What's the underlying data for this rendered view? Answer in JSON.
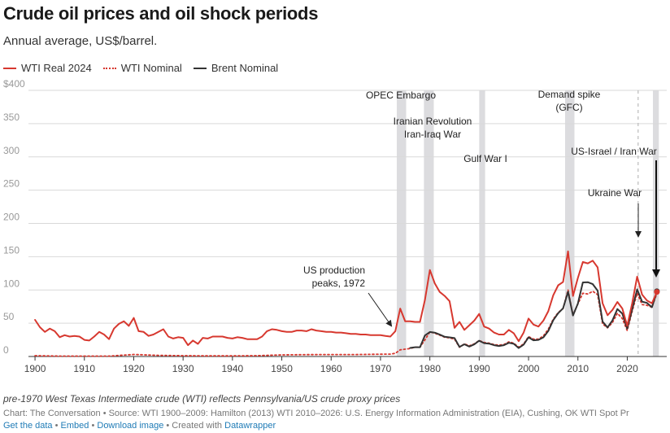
{
  "header": {
    "title": "Crude oil prices and oil shock periods",
    "subtitle": "Annual average, US$/barrel."
  },
  "legend": [
    {
      "label": "WTI Real 2024",
      "color": "#d7382f",
      "style": "solid"
    },
    {
      "label": "WTI Nominal",
      "color": "#d7382f",
      "style": "dotted"
    },
    {
      "label": "Brent Nominal",
      "color": "#333333",
      "style": "solid"
    }
  ],
  "chart_data": {
    "type": "line",
    "title": "Crude oil prices and oil shock periods",
    "ylabel": "US$/barrel",
    "xlim": [
      1899,
      2028
    ],
    "ylim": [
      0,
      400
    ],
    "yticks": [
      0,
      50,
      100,
      150,
      200,
      250,
      300,
      350,
      400
    ],
    "ytick_labels": [
      "0",
      "50",
      "100",
      "150",
      "200",
      "250",
      "300",
      "350",
      "$400"
    ],
    "xticks": [
      1900,
      1910,
      1920,
      1930,
      1940,
      1950,
      1960,
      1970,
      1980,
      1990,
      2000,
      2010,
      2020
    ],
    "xtick_labels": [
      "1900",
      "1910",
      "1920",
      "1930",
      "1940",
      "1950",
      "1960",
      "1970",
      "1980",
      "1990",
      "2000",
      "2010",
      "2020"
    ],
    "grid": true,
    "shaded_periods": [
      {
        "start": 1973.3,
        "end": 1975.2
      },
      {
        "start": 1978.8,
        "end": 1980.8
      },
      {
        "start": 1990.0,
        "end": 1991.2
      },
      {
        "start": 2007.4,
        "end": 2009.3
      },
      {
        "start": 2025.2,
        "end": 2026.4
      }
    ],
    "vlines": [
      {
        "x": 2022.2,
        "style": "dashed"
      }
    ],
    "annotations": [
      {
        "id": "opec",
        "lines": [
          "OPEC Embargo"
        ]
      },
      {
        "id": "iran",
        "lines": [
          "Iranian Revolution",
          "Iran-Iraq War"
        ]
      },
      {
        "id": "gulf",
        "lines": [
          "Gulf War I"
        ]
      },
      {
        "id": "gfc",
        "lines": [
          "Demand spike",
          "(GFC)"
        ]
      },
      {
        "id": "israel",
        "lines": [
          "US-Israel / Iran War"
        ]
      },
      {
        "id": "ukraine",
        "lines": [
          "Ukraine War"
        ]
      },
      {
        "id": "uspeak",
        "lines": [
          "US production",
          "peaks, 1972"
        ]
      }
    ],
    "series": [
      {
        "name": "WTI Real 2024",
        "color": "#d7382f",
        "style": "solid",
        "end_marker": true,
        "x": [
          1900,
          1901,
          1902,
          1903,
          1904,
          1905,
          1906,
          1907,
          1908,
          1909,
          1910,
          1911,
          1912,
          1913,
          1914,
          1915,
          1916,
          1917,
          1918,
          1919,
          1920,
          1921,
          1922,
          1923,
          1924,
          1925,
          1926,
          1927,
          1928,
          1929,
          1930,
          1931,
          1932,
          1933,
          1934,
          1935,
          1936,
          1937,
          1938,
          1939,
          1940,
          1941,
          1942,
          1943,
          1944,
          1945,
          1946,
          1947,
          1948,
          1949,
          1950,
          1951,
          1952,
          1953,
          1954,
          1955,
          1956,
          1957,
          1958,
          1959,
          1960,
          1961,
          1962,
          1963,
          1964,
          1965,
          1966,
          1967,
          1968,
          1969,
          1970,
          1971,
          1972,
          1973,
          1974,
          1975,
          1976,
          1977,
          1978,
          1979,
          1980,
          1981,
          1982,
          1983,
          1984,
          1985,
          1986,
          1987,
          1988,
          1989,
          1990,
          1991,
          1992,
          1993,
          1994,
          1995,
          1996,
          1997,
          1998,
          1999,
          2000,
          2001,
          2002,
          2003,
          2004,
          2005,
          2006,
          2007,
          2008,
          2009,
          2010,
          2011,
          2012,
          2013,
          2014,
          2015,
          2016,
          2017,
          2018,
          2019,
          2020,
          2021,
          2022,
          2023,
          2024,
          2025,
          2026
        ],
        "values": [
          55,
          44,
          37,
          42,
          38,
          29,
          32,
          30,
          31,
          30,
          25,
          24,
          30,
          37,
          33,
          26,
          42,
          49,
          53,
          46,
          58,
          38,
          37,
          31,
          33,
          37,
          41,
          30,
          27,
          29,
          28,
          17,
          24,
          19,
          28,
          27,
          30,
          30,
          30,
          28,
          27,
          29,
          28,
          26,
          26,
          26,
          30,
          38,
          41,
          40,
          38,
          37,
          37,
          39,
          39,
          38,
          41,
          39,
          38,
          37,
          37,
          36,
          36,
          35,
          34,
          34,
          33,
          33,
          32,
          32,
          32,
          31,
          30,
          38,
          72,
          53,
          53,
          52,
          52,
          85,
          130,
          110,
          97,
          91,
          83,
          43,
          52,
          40,
          47,
          54,
          64,
          45,
          42,
          36,
          33,
          33,
          40,
          35,
          23,
          36,
          57,
          48,
          45,
          54,
          68,
          92,
          107,
          112,
          158,
          91,
          118,
          142,
          140,
          144,
          134,
          80,
          62,
          70,
          82,
          72,
          46,
          80,
          120,
          93,
          84,
          80,
          97
        ]
      },
      {
        "name": "WTI Nominal",
        "color": "#d7382f",
        "style": "dotted",
        "x": [
          1900,
          1905,
          1910,
          1915,
          1920,
          1925,
          1930,
          1935,
          1940,
          1945,
          1950,
          1955,
          1960,
          1965,
          1970,
          1972,
          1973,
          1974,
          1975,
          1976,
          1977,
          1978,
          1979,
          1980,
          1981,
          1982,
          1983,
          1984,
          1985,
          1986,
          1987,
          1988,
          1989,
          1990,
          1991,
          1992,
          1993,
          1994,
          1995,
          1996,
          1997,
          1998,
          1999,
          2000,
          2001,
          2002,
          2003,
          2004,
          2005,
          2006,
          2007,
          2008,
          2009,
          2010,
          2011,
          2012,
          2013,
          2014,
          2015,
          2016,
          2017,
          2018,
          2019,
          2020,
          2021,
          2022,
          2023,
          2024,
          2025,
          2026
        ],
        "values": [
          1.2,
          0.6,
          0.6,
          0.6,
          3.1,
          1.7,
          1.2,
          1.0,
          1.0,
          1.2,
          2.5,
          2.8,
          2.9,
          2.9,
          3.4,
          3.6,
          4.8,
          10,
          11,
          12,
          14,
          14,
          25,
          37,
          35,
          32,
          29,
          28,
          26,
          14,
          19,
          16,
          19,
          24,
          21,
          20,
          18,
          17,
          18,
          22,
          20,
          14,
          19,
          30,
          26,
          26,
          31,
          41,
          56,
          66,
          72,
          100,
          62,
          79,
          95,
          94,
          98,
          93,
          49,
          43,
          51,
          65,
          57,
          39,
          68,
          95,
          78,
          77,
          74,
          95
        ]
      },
      {
        "name": "Brent Nominal",
        "color": "#333333",
        "style": "solid",
        "end_marker": true,
        "x": [
          1976,
          1977,
          1978,
          1979,
          1980,
          1981,
          1982,
          1983,
          1984,
          1985,
          1986,
          1987,
          1988,
          1989,
          1990,
          1991,
          1992,
          1993,
          1994,
          1995,
          1996,
          1997,
          1998,
          1999,
          2000,
          2001,
          2002,
          2003,
          2004,
          2005,
          2006,
          2007,
          2008,
          2009,
          2010,
          2011,
          2012,
          2013,
          2014,
          2015,
          2016,
          2017,
          2018,
          2019,
          2020,
          2021,
          2022,
          2023,
          2024,
          2025,
          2026
        ],
        "values": [
          12.8,
          13.9,
          14.0,
          31.6,
          36.8,
          35.9,
          32.9,
          29.6,
          28.8,
          27.6,
          14.4,
          18.4,
          14.9,
          18.2,
          23.7,
          20.0,
          19.3,
          17.0,
          15.8,
          17.0,
          20.6,
          19.1,
          12.7,
          17.9,
          28.7,
          24.4,
          25.0,
          28.8,
          38.3,
          54.5,
          65.1,
          72.4,
          97.3,
          61.7,
          79.5,
          111.3,
          111.7,
          108.7,
          99.0,
          52.4,
          43.7,
          54.2,
          71.3,
          64.3,
          41.8,
          70.9,
          100.9,
          82.5,
          80.5,
          74,
          98
        ]
      }
    ]
  },
  "footer": {
    "note": "pre-1970 West Texas Intermediate crude (WTI) reflects Pennsylvania/US crude proxy prices",
    "source": "Chart: The Conversation • Source: WTI 1900–2009: Hamilton (2013) WTI 2010–2026: U.S. Energy Information Administration (EIA), Cushing, OK WTI Spot Pr",
    "get_data": "Get the data",
    "embed": "Embed",
    "download": "Download image",
    "created_with": "Created with",
    "datawrapper": "Datawrapper"
  }
}
